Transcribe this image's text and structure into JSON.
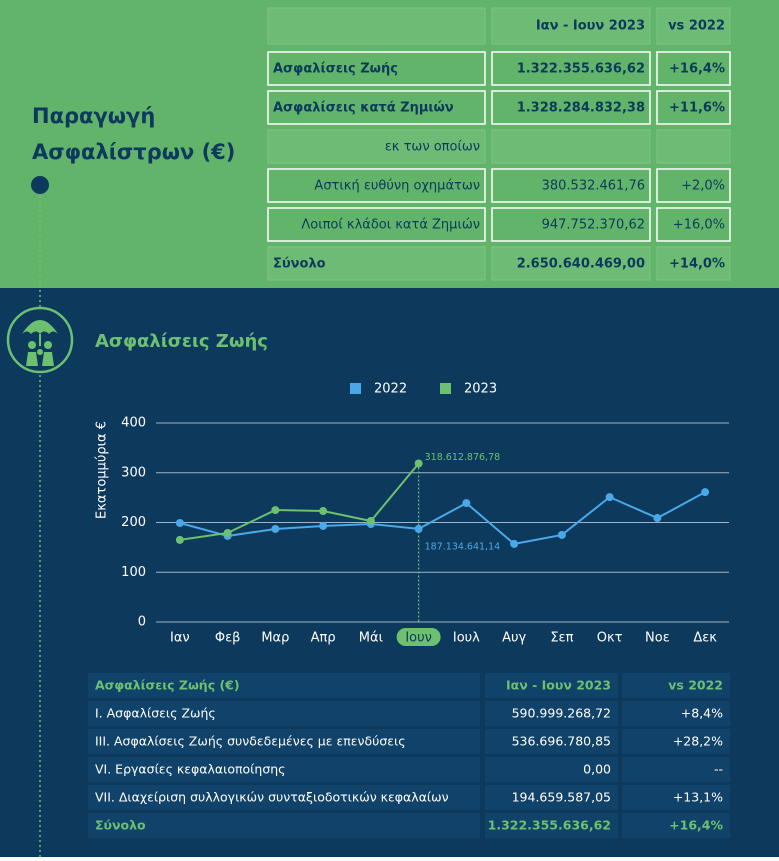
{
  "header": {
    "title_line1": "Παραγωγή",
    "title_line2": "Ασφαλίστρων (€)"
  },
  "top_table": {
    "columns": [
      "Ιαν - Ιουν 2023",
      "vs 2022"
    ],
    "rows": [
      [
        "Ασφαλίσεις Ζωής",
        "1.322.355.636,62",
        "+16,4%"
      ],
      [
        "Ασφαλίσεις κατά Ζημιών",
        "1.328.284.832,38",
        "+11,6%"
      ],
      [
        "εκ των οποίων"
      ],
      [
        "Αστική ευθύνη οχημάτων",
        "380.532.461,76",
        "+2,0%"
      ],
      [
        "Λοιποί κλάδοι κατά Ζημιών",
        "947.752.370,62",
        "+16,0%"
      ],
      [
        "Σύνολο",
        "2.650.640.469,00",
        "+14,0%"
      ]
    ]
  },
  "chart_data": {
    "type": "line",
    "title": "Ασφαλίσεις Ζωής",
    "y_label": "Εκατομμύρια €",
    "categories": [
      "Ιαν",
      "Φεβ",
      "Μαρ",
      "Απρ",
      "Μάι",
      "Ιουν",
      "Ιουλ",
      "Αυγ",
      "Σεπ",
      "Οκτ",
      "Νοε",
      "Δεκ"
    ],
    "highlight_index": 5,
    "series": [
      {
        "name": "2022",
        "color": "#4aa8e8",
        "values": [
          199,
          173,
          187,
          193,
          197,
          187.13464114,
          239,
          157,
          175,
          251,
          209,
          261
        ],
        "value_labels": [
          null,
          null,
          null,
          null,
          null,
          "187.134.641,14",
          null,
          null,
          null,
          null,
          null,
          null
        ]
      },
      {
        "name": "2023",
        "color": "#6cc070",
        "values": [
          165,
          179,
          225,
          223,
          203,
          318.61287678,
          null,
          null,
          null,
          null,
          null,
          null
        ],
        "value_labels": [
          null,
          null,
          null,
          null,
          null,
          "318.612.876,78",
          null,
          null,
          null,
          null,
          null,
          null
        ]
      }
    ],
    "ylim": [
      0,
      400
    ],
    "yticks": [
      0,
      100,
      200,
      300,
      400
    ],
    "grid": true,
    "legend": "top"
  },
  "bottom_table": {
    "columns": [
      "Ασφαλίσεις Ζωής (€)",
      "Ιαν - Ιουν 2023",
      "vs 2022"
    ],
    "rows": [
      [
        "Ι. Ασφαλίσεις  Ζωής",
        "590.999.268,72",
        "+8,4%"
      ],
      [
        "ΙΙΙ. Ασφαλίσεις  Ζωής  συνδεδεμένες με επενδύσεις",
        "536.696.780,85",
        "+28,2%"
      ],
      [
        "VI. Εργασίες κεφαλαιοποίησης",
        "0,00",
        "--"
      ],
      [
        "VII. Διαχείριση συλλογικών συνταξιοδοτικών κεφαλαίων",
        "194.659.587,05",
        "+13,1%"
      ],
      [
        "Σύνολο",
        "1.322.355.636,62",
        "+16,4%"
      ]
    ]
  }
}
